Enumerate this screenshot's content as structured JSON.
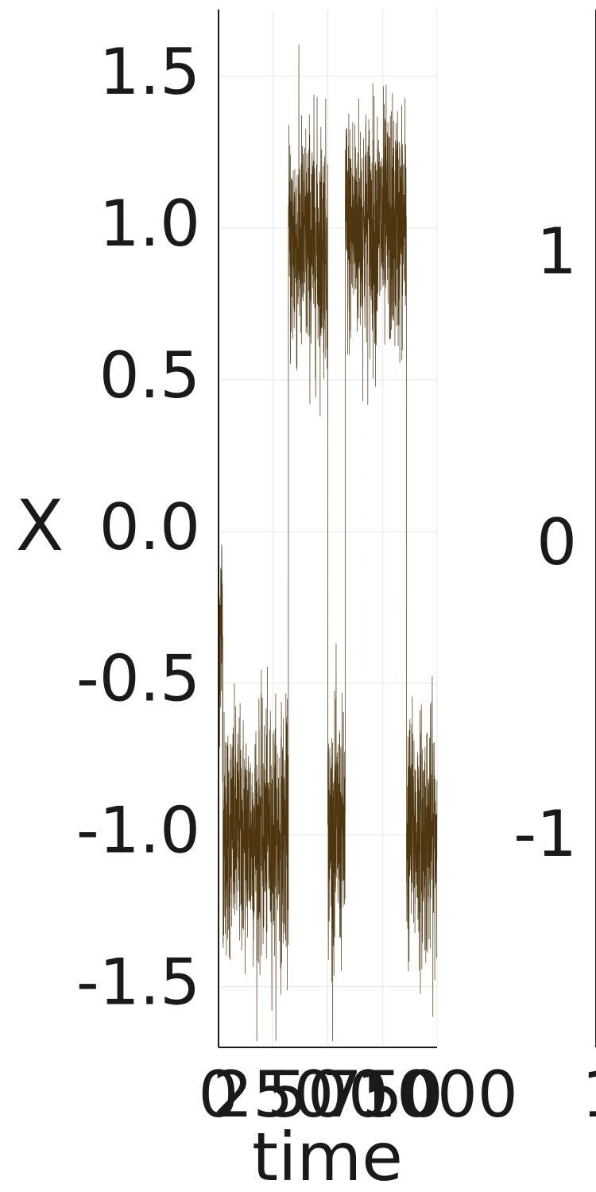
{
  "chart_data": [
    {
      "type": "line",
      "xlabel": "time",
      "ylabel": "X",
      "xlim": [
        0,
        1000
      ],
      "ylim": [
        -1.7,
        1.72
      ],
      "x_ticks": [
        0,
        250,
        500,
        750,
        1000
      ],
      "x_tick_labels": [
        "0",
        "250",
        "500",
        "750",
        "1000"
      ],
      "y_ticks": [
        1.5,
        1.0,
        0.5,
        0.0,
        -0.5,
        -1.0,
        -1.5
      ],
      "y_tick_labels": [
        "1.5",
        "1.0",
        "0.5",
        "0.0",
        "-0.5",
        "-1.0",
        "-1.5"
      ],
      "grid": true,
      "color": "#4d3510",
      "series": [
        {
          "description_regimes": [
            {
              "x_start": 0,
              "x_end": 20,
              "mean": -0.3
            },
            {
              "x_start": 20,
              "x_end": 320,
              "mean": -1.0
            },
            {
              "x_start": 320,
              "x_end": 500,
              "mean": 0.95
            },
            {
              "x_start": 500,
              "x_end": 580,
              "mean": -1.0
            },
            {
              "x_start": 580,
              "x_end": 860,
              "mean": 1.0
            },
            {
              "x_start": 860,
              "x_end": 1000,
              "mean": -1.0
            }
          ]
        }
      ]
    },
    {
      "type": "line",
      "y_ticks": [
        1,
        0,
        -1
      ],
      "y_tick_labels": [
        "1",
        "0",
        "-1"
      ],
      "x_tick_labels": [
        "1"
      ]
    }
  ]
}
